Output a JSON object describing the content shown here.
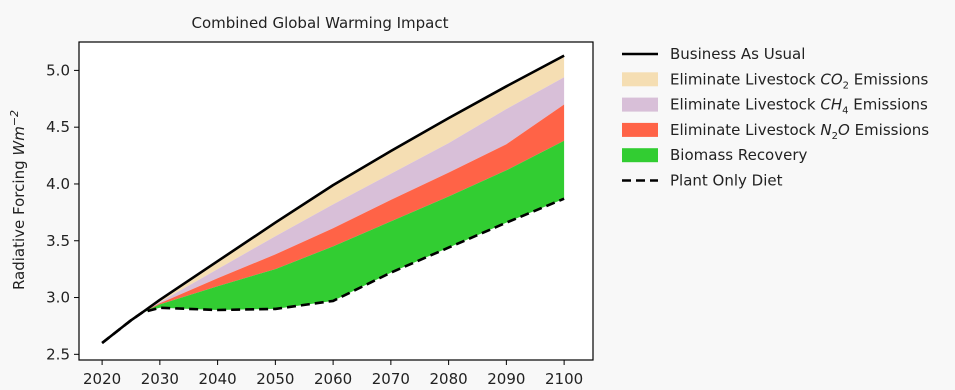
{
  "chart_data": {
    "type": "area",
    "title": "Combined Global Warming Impact",
    "xlabel": "",
    "ylabel": "Radiative Forcing Wm⁻²",
    "xlim": [
      2016,
      2105
    ],
    "ylim": [
      2.45,
      5.25
    ],
    "xticks": [
      2020,
      2030,
      2040,
      2050,
      2060,
      2070,
      2080,
      2090,
      2100
    ],
    "yticks": [
      2.5,
      3.0,
      3.5,
      4.0,
      4.5,
      5.0
    ],
    "x": [
      2020,
      2025,
      2027,
      2030,
      2040,
      2050,
      2060,
      2070,
      2080,
      2090,
      2100
    ],
    "series": [
      {
        "name": "Business As Usual",
        "kind": "line",
        "style": "solid",
        "color": "#000000",
        "values": [
          2.6,
          2.8,
          2.87,
          2.98,
          3.32,
          3.66,
          3.99,
          4.29,
          4.58,
          4.86,
          5.13
        ]
      },
      {
        "name": "Eliminate Livestock CO2 Emissions",
        "label_main": "Eliminate Livestock ",
        "label_sym": "CO",
        "label_sub": "2",
        "label_tail": " Emissions",
        "kind": "band",
        "color": "#f5deb3",
        "values": [
          2.6,
          2.8,
          2.87,
          2.96,
          3.25,
          3.54,
          3.82,
          4.09,
          4.36,
          4.66,
          4.94
        ]
      },
      {
        "name": "Eliminate Livestock CH4 Emissions",
        "label_main": "Eliminate Livestock ",
        "label_sym": "CH",
        "label_sub": "4",
        "label_tail": " Emissions",
        "kind": "band",
        "color": "#d8bfd8",
        "values": [
          2.6,
          2.8,
          2.87,
          2.95,
          3.17,
          3.38,
          3.61,
          3.86,
          4.1,
          4.35,
          4.7
        ]
      },
      {
        "name": "Eliminate Livestock N2O Emissions",
        "label_main": "Eliminate Livestock ",
        "label_sym": "N",
        "label_sub": "2",
        "label_tail": "O Emissions",
        "kind": "band",
        "color": "#ff6347",
        "values": [
          2.6,
          2.8,
          2.87,
          2.94,
          3.1,
          3.25,
          3.45,
          3.67,
          3.89,
          4.12,
          4.38
        ]
      },
      {
        "name": "Biomass Recovery",
        "kind": "band",
        "color": "#32cd32",
        "values": [
          2.6,
          2.8,
          2.87,
          2.91,
          2.89,
          2.9,
          2.97,
          3.22,
          3.44,
          3.66,
          3.87
        ]
      },
      {
        "name": "Plant Only Diet",
        "kind": "line",
        "style": "dashed",
        "color": "#000000",
        "values": [
          2.6,
          2.8,
          2.87,
          2.91,
          2.89,
          2.9,
          2.97,
          3.22,
          3.44,
          3.66,
          3.87
        ]
      }
    ],
    "legend_position": "right",
    "grid": false
  }
}
